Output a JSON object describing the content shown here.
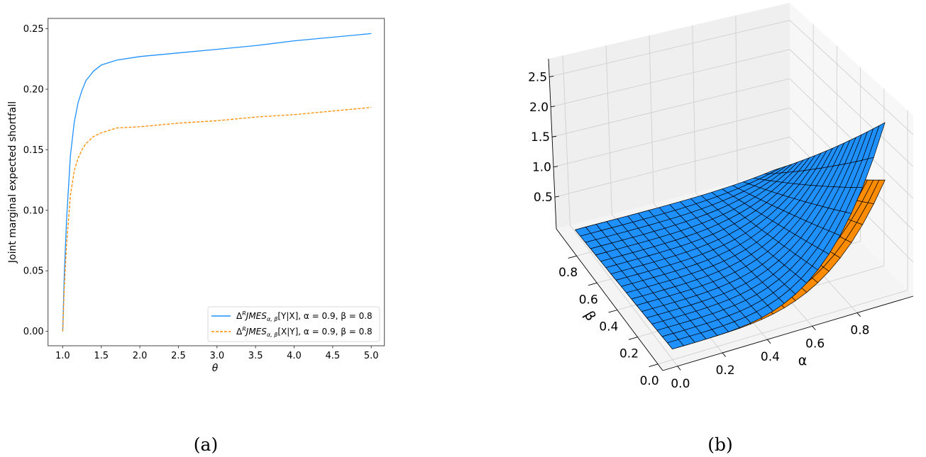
{
  "captions": {
    "a": "(a)",
    "b": "(b)"
  },
  "chart_data": [
    {
      "type": "line",
      "title": "",
      "xlabel": "θ",
      "ylabel": "Joint marginal expected shortfall",
      "xlim": [
        0.81,
        5.17
      ],
      "ylim": [
        -0.0119,
        0.2585
      ],
      "grid": false,
      "xticks": [
        1.0,
        1.5,
        2.0,
        2.5,
        3.0,
        3.5,
        4.0,
        4.5,
        5.0
      ],
      "xtick_labels": [
        "1.0",
        "1.5",
        "2.0",
        "2.5",
        "3.0",
        "3.5",
        "4.0",
        "4.5",
        "5.0"
      ],
      "yticks": [
        0.0,
        0.05,
        0.1,
        0.15,
        0.2,
        0.25
      ],
      "ytick_labels": [
        "0.00",
        "0.05",
        "0.10",
        "0.15",
        "0.20",
        "0.25"
      ],
      "legend_placement": "lower-right",
      "x": [
        1.0,
        1.02,
        1.05,
        1.1,
        1.15,
        1.2,
        1.25,
        1.3,
        1.4,
        1.5,
        1.7,
        2.0,
        2.5,
        3.0,
        3.5,
        4.0,
        4.5,
        5.0
      ],
      "series": [
        {
          "legend": {
            "delta": "Δ",
            "sup": "R",
            "main": "JMES",
            "sub": "α, β",
            "rest": "[Y|X], α = 0.9, β = 0.8"
          },
          "color": "#1e90ff",
          "style": "solid",
          "values": [
            0.0,
            0.045,
            0.092,
            0.145,
            0.173,
            0.189,
            0.199,
            0.207,
            0.215,
            0.22,
            0.224,
            0.227,
            0.23,
            0.233,
            0.236,
            0.24,
            0.243,
            0.246
          ]
        },
        {
          "legend": {
            "delta": "Δ",
            "sup": "R",
            "main": "JMES",
            "sub": "α, β",
            "rest": "[X|Y], α = 0.9, β = 0.8"
          },
          "color": "#ff8c00",
          "style": "dashed",
          "values": [
            0.0,
            0.035,
            0.072,
            0.112,
            0.133,
            0.143,
            0.15,
            0.155,
            0.161,
            0.164,
            0.168,
            0.169,
            0.172,
            0.174,
            0.177,
            0.179,
            0.182,
            0.185
          ]
        }
      ]
    },
    {
      "type": "surface3d",
      "xlabel": "α",
      "ylabel": "β",
      "zlabel": "",
      "xlim": [
        -0.066,
        1.05
      ],
      "ylim": [
        -0.048,
        1.0
      ],
      "zlim": [
        -0.03,
        2.8
      ],
      "xticks": [
        0.0,
        0.2,
        0.4,
        0.6,
        0.8
      ],
      "xtick_labels": [
        "0.0",
        "0.2",
        "0.4",
        "0.6",
        "0.8"
      ],
      "yticks": [
        0.0,
        0.2,
        0.4,
        0.6,
        0.8
      ],
      "ytick_labels": [
        "0.0",
        "0.2",
        "0.4",
        "0.6",
        "0.8"
      ],
      "zticks": [
        0.5,
        1.0,
        1.5,
        2.0,
        2.5
      ],
      "ztick_labels": [
        "0.5",
        "1.0",
        "1.5",
        "2.0",
        "2.5"
      ],
      "alpha": [
        0.0,
        0.05,
        0.1,
        0.15,
        0.2,
        0.25,
        0.3,
        0.35,
        0.4,
        0.45,
        0.5,
        0.55,
        0.6,
        0.65,
        0.7,
        0.75,
        0.8,
        0.85,
        0.9,
        0.95
      ],
      "beta": [
        0.0,
        0.05,
        0.1,
        0.15,
        0.2,
        0.25,
        0.3,
        0.35,
        0.4,
        0.45,
        0.5,
        0.55,
        0.6,
        0.65,
        0.7,
        0.75,
        0.8,
        0.85,
        0.9,
        0.95
      ],
      "beta_profile": [
        1.0,
        0.95,
        0.9,
        0.85,
        0.8,
        0.75,
        0.7,
        0.65,
        0.6,
        0.55,
        0.5,
        0.45,
        0.4,
        0.35,
        0.3,
        0.25,
        0.2,
        0.15,
        0.1,
        0.05
      ],
      "surfaces": [
        {
          "name": "orange",
          "color": "#ff8c00",
          "z_at_beta_0": [
            0.13,
            0.13,
            0.13,
            0.131,
            0.133,
            0.138,
            0.147,
            0.161,
            0.183,
            0.214,
            0.258,
            0.318,
            0.396,
            0.496,
            0.622,
            0.779,
            0.97,
            1.2,
            1.475,
            1.8
          ]
        },
        {
          "name": "blue",
          "color": "#1e90ff",
          "z_at_beta_0": [
            0.13,
            0.13,
            0.13,
            0.132,
            0.135,
            0.142,
            0.156,
            0.177,
            0.211,
            0.259,
            0.327,
            0.419,
            0.539,
            0.693,
            0.887,
            1.128,
            1.422,
            1.777,
            2.2,
            2.7
          ]
        }
      ]
    }
  ]
}
